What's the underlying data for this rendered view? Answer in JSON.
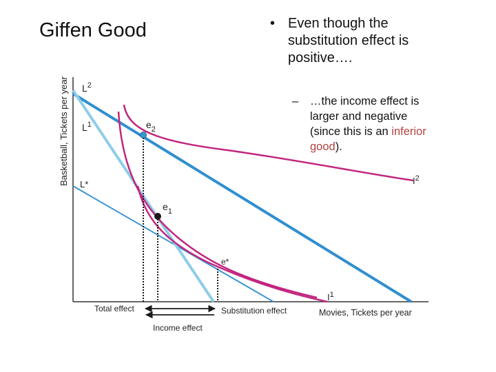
{
  "title": "Giffen Good",
  "bullet": {
    "line1": "Even though the",
    "line2": "substitution effect is",
    "line3": "positive….",
    "sub_line1": "…the income effect is",
    "sub_line2": "larger and negative",
    "sub_line3_pre": "(since this is an ",
    "sub_line3_hl": "inferior",
    "sub_line4_hl": "good",
    "sub_line4_post": ")."
  },
  "diagram": {
    "y_axis_label": "Basketball, Tickets per year",
    "x_axis_label": "Movies, Tickets per year",
    "budget_labels": {
      "L2": "L",
      "L2_sup": "2",
      "L1": "L",
      "L1_sup": "1",
      "Lstar": "L*"
    },
    "indifference_labels": {
      "I2": "I",
      "I2_sup": "2",
      "I1": "I",
      "I1_sup": "1"
    },
    "point_labels": {
      "e2": "e",
      "e2_sub": "2",
      "e1": "e",
      "e1_sub": "1",
      "estar": "e*"
    },
    "effect_labels": {
      "total": "Total effect",
      "substitution": "Substitution effect",
      "income": "Income effect"
    },
    "colors": {
      "budget_dark": "#2f8fd0",
      "budget_light": "#8ecde8",
      "indifference": "#c2267f",
      "axis": "#333333",
      "marker": "#1a1a1a"
    }
  }
}
